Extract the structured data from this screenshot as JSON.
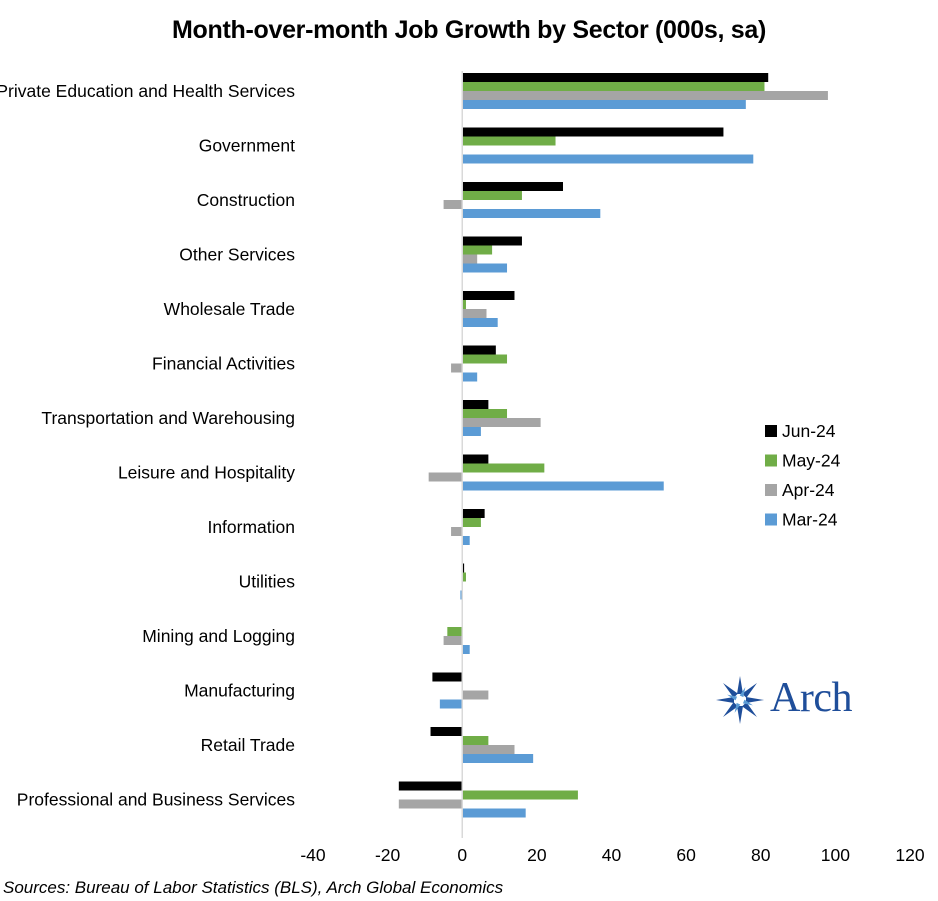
{
  "chart_data": {
    "type": "bar",
    "orientation": "horizontal",
    "title": "Month-over-month Job Growth by Sector (000s, sa)",
    "source": "Sources: Bureau of Labor Statistics (BLS), Arch Global Economics",
    "categories": [
      "Private Education and Health Services",
      "Government",
      "Construction",
      "Other Services",
      "Wholesale Trade",
      "Financial Activities",
      "Transportation and Warehousing",
      "Leisure and Hospitality",
      "Information",
      "Utilities",
      "Mining and Logging",
      "Manufacturing",
      "Retail Trade",
      "Professional and Business Services"
    ],
    "series": [
      {
        "name": "Jun-24",
        "color": "#000000",
        "values": [
          82,
          70,
          27,
          16,
          14,
          9,
          7,
          7,
          6,
          0.5,
          0,
          -8,
          -8.5,
          -17
        ]
      },
      {
        "name": "May-24",
        "color": "#70ad47",
        "values": [
          81,
          25,
          16,
          8,
          1,
          12,
          12,
          22,
          5,
          1,
          -4,
          0,
          7,
          31
        ]
      },
      {
        "name": "Apr-24",
        "color": "#a5a5a5",
        "values": [
          98,
          0,
          -5,
          4,
          6.5,
          -3,
          21,
          -9,
          -3,
          0,
          -5,
          7,
          14,
          -17
        ]
      },
      {
        "name": "Mar-24",
        "color": "#5b9bd5",
        "values": [
          76,
          78,
          37,
          12,
          9.5,
          4,
          5,
          54,
          2,
          -0.5,
          2,
          -6,
          19,
          17
        ]
      }
    ],
    "xlim": [
      -40,
      120
    ],
    "xticks": [
      "-40",
      "-20",
      "0",
      "20",
      "40",
      "60",
      "80",
      "100",
      "120"
    ],
    "legend_position": "right",
    "grid": false
  },
  "logo": {
    "text": "Arch",
    "icon": "arch-star-logo-icon",
    "color": "#1f4e9a"
  }
}
